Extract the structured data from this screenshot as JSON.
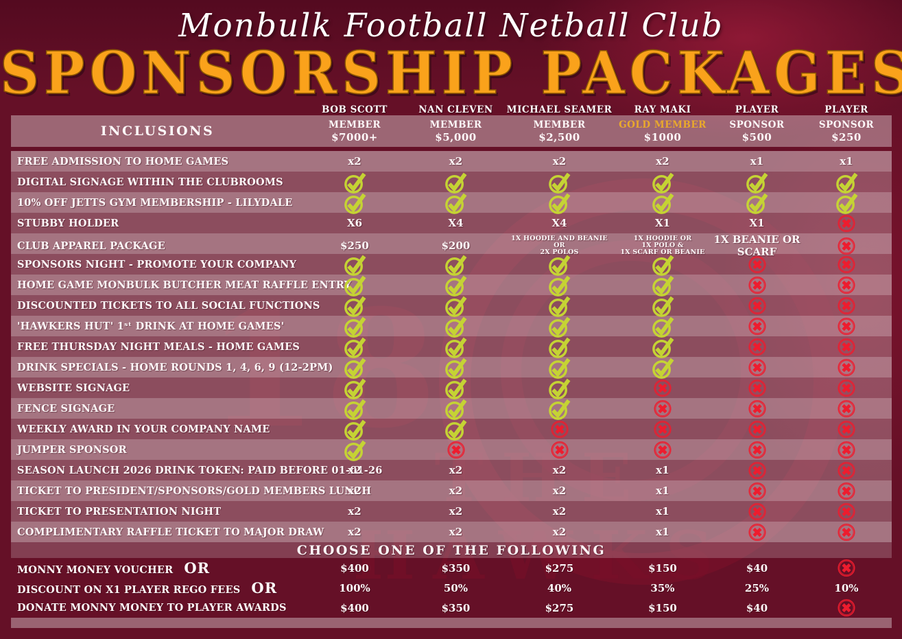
{
  "header": {
    "club_name": "Monbulk Football Netball Club",
    "title": "SPONSORSHIP PACKAGES"
  },
  "colors": {
    "background_maroon": "#651027",
    "title_orange": "#faa21b",
    "gold_member": "#e9a92c",
    "check_green": "#c5d334",
    "cross_red": "#ee1c2e"
  },
  "icons": {
    "CHECK": "check-icon",
    "CROSS": "cross-icon"
  },
  "watermark": {
    "number": "18",
    "text": "THE HAWKS"
  },
  "table": {
    "inclusions_label": "INCLUSIONS",
    "columns": [
      {
        "name": "BOB SCOTT",
        "tier": "MEMBER",
        "price": "$7000+",
        "gold": false
      },
      {
        "name": "NAN CLEVEN",
        "tier": "MEMBER",
        "price": "$5,000",
        "gold": false
      },
      {
        "name": "MICHAEL SEAMER",
        "tier": "MEMBER",
        "price": "$2,500",
        "gold": false
      },
      {
        "name": "RAY MAKI",
        "tier": "GOLD MEMBER",
        "price": "$1000",
        "gold": true
      },
      {
        "name": "PLAYER",
        "tier": "SPONSOR",
        "price": "$500",
        "gold": false
      },
      {
        "name": "PLAYER",
        "tier": "SPONSOR",
        "price": "$250",
        "gold": false
      }
    ],
    "rows": [
      {
        "label": "FREE ADMISSION TO HOME GAMES",
        "cells": [
          "x2",
          "x2",
          "x2",
          "x2",
          "x1",
          "x1"
        ]
      },
      {
        "label": "DIGITAL SIGNAGE WITHIN THE CLUBROOMS",
        "cells": [
          "CHECK",
          "CHECK",
          "CHECK",
          "CHECK",
          "CHECK",
          "CHECK"
        ]
      },
      {
        "label": "10% OFF JETTS GYM MEMBERSHIP - LILYDALE",
        "cells": [
          "CHECK",
          "CHECK",
          "CHECK",
          "CHECK",
          "CHECK",
          "CHECK"
        ]
      },
      {
        "label": "STUBBY HOLDER",
        "cells": [
          "X6",
          "X4",
          "X4",
          "X1",
          "X1",
          "CROSS"
        ]
      },
      {
        "label": "CLUB APPAREL PACKAGE",
        "cells": [
          "$250",
          "$200",
          "1X HOODIE AND BEANIE\nOR\n2X POLOS",
          "1X HOODIE OR\n1X POLO &\n1X SCARF OR BEANIE",
          "1X BEANIE OR SCARF",
          "CROSS"
        ]
      },
      {
        "label": "SPONSORS NIGHT - PROMOTE YOUR COMPANY",
        "cells": [
          "CHECK",
          "CHECK",
          "CHECK",
          "CHECK",
          "CROSS",
          "CROSS"
        ]
      },
      {
        "label": "HOME GAME MONBULK BUTCHER MEAT RAFFLE ENTRY",
        "cells": [
          "CHECK",
          "CHECK",
          "CHECK",
          "CHECK",
          "CROSS",
          "CROSS"
        ]
      },
      {
        "label": "DISCOUNTED TICKETS TO ALL SOCIAL FUNCTIONS",
        "cells": [
          "CHECK",
          "CHECK",
          "CHECK",
          "CHECK",
          "CROSS",
          "CROSS"
        ]
      },
      {
        "label": "'HAWKERS HUT' 1ˢᵗ DRINK AT HOME GAMES'",
        "cells": [
          "CHECK",
          "CHECK",
          "CHECK",
          "CHECK",
          "CROSS",
          "CROSS"
        ]
      },
      {
        "label": "FREE THURSDAY NIGHT MEALS - HOME GAMES",
        "cells": [
          "CHECK",
          "CHECK",
          "CHECK",
          "CHECK",
          "CROSS",
          "CROSS"
        ]
      },
      {
        "label": "DRINK SPECIALS - HOME ROUNDS 1, 4, 6, 9 (12-2PM)",
        "cells": [
          "CHECK",
          "CHECK",
          "CHECK",
          "CHECK",
          "CROSS",
          "CROSS"
        ]
      },
      {
        "label": "WEBSITE SIGNAGE",
        "cells": [
          "CHECK",
          "CHECK",
          "CHECK",
          "CROSS",
          "CROSS",
          "CROSS"
        ]
      },
      {
        "label": "FENCE SIGNAGE",
        "cells": [
          "CHECK",
          "CHECK",
          "CHECK",
          "CROSS",
          "CROSS",
          "CROSS"
        ]
      },
      {
        "label": "WEEKLY AWARD IN YOUR COMPANY NAME",
        "cells": [
          "CHECK",
          "CHECK",
          "CROSS",
          "CROSS",
          "CROSS",
          "CROSS"
        ]
      },
      {
        "label": "JUMPER SPONSOR",
        "cells": [
          "CHECK",
          "CROSS",
          "CROSS",
          "CROSS",
          "CROSS",
          "CROSS"
        ]
      },
      {
        "label": "SEASON LAUNCH 2026 DRINK TOKEN: PAID BEFORE 01-01-26",
        "cells": [
          "x2",
          "x2",
          "x2",
          "x1",
          "CROSS",
          "CROSS"
        ]
      },
      {
        "label": "TICKET TO PRESIDENT/SPONSORS/GOLD MEMBERS LUNCH",
        "cells": [
          "x2",
          "x2",
          "x2",
          "x1",
          "CROSS",
          "CROSS"
        ]
      },
      {
        "label": "TICKET TO PRESENTATION NIGHT",
        "cells": [
          "x2",
          "x2",
          "x2",
          "x1",
          "CROSS",
          "CROSS"
        ]
      },
      {
        "label": "COMPLIMENTARY RAFFLE TICKET TO MAJOR DRAW",
        "cells": [
          "x2",
          "x2",
          "x2",
          "x1",
          "CROSS",
          "CROSS"
        ]
      }
    ],
    "choose_banner": "CHOOSE ONE OF THE FOLLOWING",
    "choose_rows": [
      {
        "label": "MONNY MONEY VOUCHER",
        "or_label": "OR",
        "cells": [
          "$400",
          "$350",
          "$275",
          "$150",
          "$40",
          "CROSS"
        ]
      },
      {
        "label": "DISCOUNT ON X1 PLAYER REGO FEES",
        "or_label": "OR",
        "cells": [
          "100%",
          "50%",
          "40%",
          "35%",
          "25%",
          "10%"
        ]
      },
      {
        "label": "DONATE MONNY MONEY TO PLAYER AWARDS",
        "cells": [
          "$400",
          "$350",
          "$275",
          "$150",
          "$40",
          "CROSS"
        ]
      }
    ]
  }
}
